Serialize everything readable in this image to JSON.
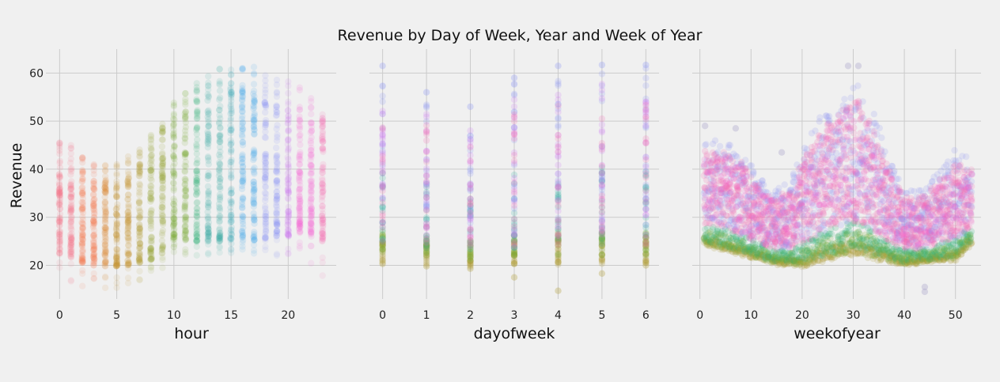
{
  "chart_data": {
    "type": "scatter",
    "title": "Revenue by Day of Week, Year and Week of Year",
    "ylabel": "Revenue",
    "ylim": [
      13,
      65
    ],
    "yticks": [
      20,
      30,
      40,
      50,
      60
    ],
    "grid": true,
    "sharey": true,
    "panels": [
      {
        "xlabel": "hour",
        "xlim": [
          -1.2,
          24.2
        ],
        "xticks": [
          0,
          5,
          10,
          15,
          20
        ],
        "x": [
          0,
          1,
          2,
          3,
          4,
          5,
          6,
          7,
          8,
          9,
          10,
          11,
          12,
          13,
          14,
          15,
          16,
          17,
          18,
          19,
          20,
          21,
          22,
          23
        ],
        "y_core_low": [
          22.5,
          21.5,
          20.5,
          20,
          19.8,
          19.8,
          20,
          20.5,
          21,
          22.5,
          24,
          25,
          25,
          25,
          25,
          24.5,
          25,
          25,
          25.5,
          26,
          26,
          26.5,
          26,
          25
        ],
        "y_core_high": [
          44,
          42,
          40,
          38.5,
          38,
          38,
          39,
          42,
          45,
          48,
          51,
          53,
          55,
          56,
          57,
          57.5,
          57,
          56,
          55,
          54,
          53,
          52,
          51,
          50
        ],
        "y_min": [
          16,
          15.5,
          15,
          14.8,
          14.8,
          15,
          15.5,
          16.5,
          17.5,
          19,
          21,
          21.5,
          22,
          22,
          22,
          22,
          22,
          22,
          22,
          22,
          22,
          22,
          19,
          17.5
        ],
        "y_max": [
          48,
          45,
          42.5,
          41,
          41,
          42,
          43,
          45,
          48,
          50,
          54,
          58,
          60,
          61,
          61,
          61.5,
          61.5,
          61.5,
          61,
          60,
          58.5,
          57,
          55,
          52
        ]
      },
      {
        "xlabel": "dayofweek",
        "xlim": [
          -0.3,
          6.3
        ],
        "xticks": [
          0,
          1,
          2,
          3,
          4,
          5,
          6
        ],
        "x": [
          0,
          1,
          2,
          3,
          4,
          5,
          6
        ],
        "y_core_low": [
          20.5,
          20,
          19.5,
          19.8,
          20,
          20,
          20
        ],
        "y_core_high": [
          58,
          55,
          52,
          58,
          60,
          61,
          61
        ],
        "y_min": [
          20.3,
          19.8,
          19.3,
          17.5,
          14.7,
          18.3,
          20
        ],
        "y_max": [
          61.5,
          56,
          53,
          59,
          61.5,
          61.7,
          61.7
        ]
      },
      {
        "xlabel": "weekofyear",
        "xlim": [
          -1.5,
          55
        ],
        "xticks": [
          0,
          10,
          20,
          30,
          40,
          50
        ],
        "x_range": [
          1,
          53
        ],
        "band_low": [
          [
            1,
            24
          ],
          [
            5,
            23
          ],
          [
            8,
            22
          ],
          [
            12,
            21
          ],
          [
            15,
            20
          ],
          [
            18,
            20
          ],
          [
            20,
            19.5
          ],
          [
            25,
            21
          ],
          [
            30,
            22
          ],
          [
            35,
            21
          ],
          [
            40,
            20
          ],
          [
            45,
            20.5
          ],
          [
            50,
            21
          ],
          [
            53,
            24
          ]
        ],
        "band_high": [
          [
            1,
            46
          ],
          [
            5,
            46
          ],
          [
            8,
            44
          ],
          [
            12,
            38
          ],
          [
            15,
            36
          ],
          [
            18,
            38
          ],
          [
            20,
            44
          ],
          [
            24,
            52
          ],
          [
            28,
            56
          ],
          [
            31,
            58
          ],
          [
            34,
            52
          ],
          [
            37,
            42
          ],
          [
            40,
            36
          ],
          [
            44,
            36
          ],
          [
            47,
            40
          ],
          [
            50,
            44
          ],
          [
            53,
            42
          ]
        ],
        "outliers": [
          [
            44,
            14.5
          ],
          [
            44,
            15.5
          ],
          [
            1,
            49
          ],
          [
            7,
            48.5
          ],
          [
            16,
            43.5
          ],
          [
            29,
            61.5
          ],
          [
            31,
            61.5
          ]
        ]
      }
    ],
    "palette": [
      "#f77189",
      "#f7754f",
      "#dc8932",
      "#c39532",
      "#ae9d31",
      "#97a431",
      "#77ab31",
      "#33b07a",
      "#36ada4",
      "#38aabb",
      "#3ba3ec",
      "#8e97f6",
      "#cc7af4",
      "#f564d4",
      "#f668b4"
    ]
  }
}
